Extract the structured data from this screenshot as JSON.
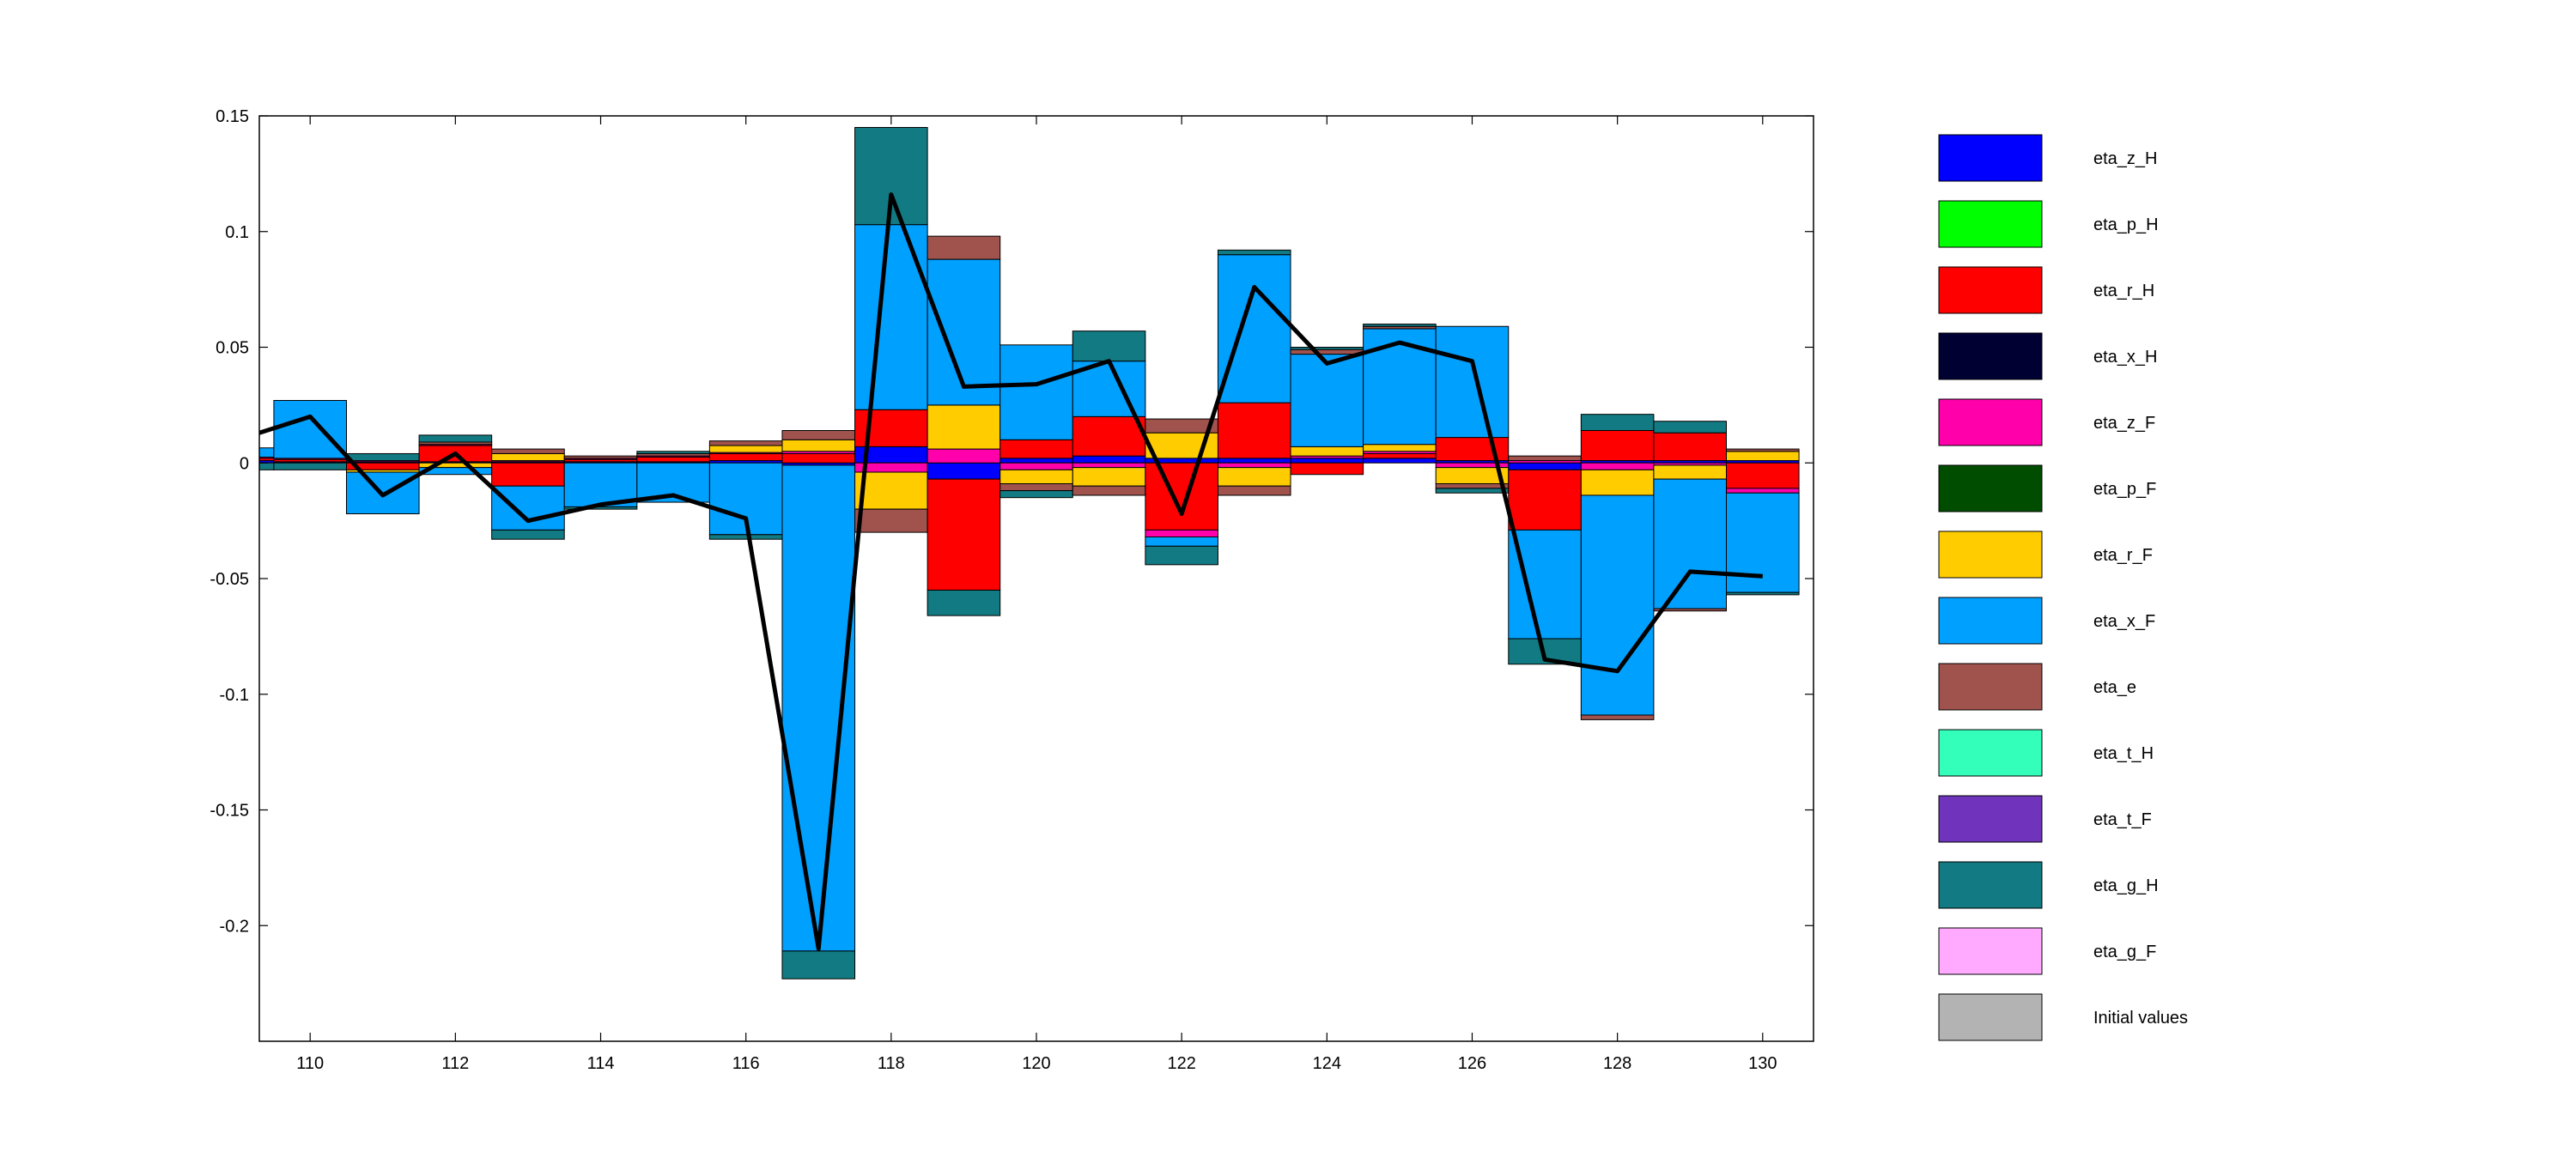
{
  "chart_data": {
    "type": "bar",
    "stacked": true,
    "x": [
      109,
      110,
      111,
      112,
      113,
      114,
      115,
      116,
      117,
      118,
      119,
      120,
      121,
      122,
      123,
      124,
      125,
      126,
      127,
      128,
      129,
      130
    ],
    "xlim": [
      109.3,
      130.7
    ],
    "ylim": [
      -0.25,
      0.15
    ],
    "xticks": [
      "110",
      "112",
      "114",
      "116",
      "118",
      "120",
      "122",
      "124",
      "126",
      "128",
      "130"
    ],
    "yticks": [
      "0.15",
      "0.1",
      "0.05",
      "0",
      "-0.05",
      "-0.1",
      "-0.15",
      "-0.2"
    ],
    "grid": false,
    "legend_position": "right-outside",
    "series": [
      {
        "name": "eta_z_H",
        "color": "#0000FF",
        "values": [
          0.001,
          0.0005,
          0.0005,
          0.0005,
          0.0005,
          0.0005,
          0.0005,
          0.001,
          -0.001,
          0.007,
          -0.007,
          0.002,
          0.003,
          0.002,
          0.002,
          0.002,
          0.002,
          0.001,
          -0.003,
          0.001,
          0.001,
          0.001
        ]
      },
      {
        "name": "eta_p_H",
        "color": "#00FF00",
        "values": [
          0,
          0,
          0,
          0,
          0,
          0,
          0,
          0,
          0,
          0,
          0,
          0,
          0,
          0,
          0,
          0,
          0,
          0,
          0,
          0,
          0,
          0
        ]
      },
      {
        "name": "eta_r_H",
        "color": "#FF0000",
        "values": [
          0.001,
          0.001,
          -0.003,
          0.007,
          -0.01,
          0.001,
          0.002,
          0.003,
          0.004,
          0.016,
          -0.048,
          0.008,
          0.017,
          -0.029,
          0.024,
          -0.005,
          0.002,
          0.01,
          -0.026,
          0.013,
          0.012,
          -0.011
        ]
      },
      {
        "name": "eta_x_H",
        "color": "#000033",
        "values": [
          0,
          0,
          0,
          0,
          0,
          0,
          0,
          0,
          0,
          0,
          0,
          0,
          0,
          0,
          0,
          0,
          0,
          0,
          0,
          0,
          0,
          0
        ]
      },
      {
        "name": "eta_z_F",
        "color": "#FF00AA",
        "values": [
          0.0005,
          0.0005,
          0.0005,
          0.0005,
          0.0005,
          0.0005,
          0.0005,
          0.0005,
          0.001,
          -0.004,
          0.006,
          -0.003,
          -0.002,
          -0.003,
          -0.002,
          0.001,
          0.001,
          -0.002,
          0.001,
          -0.003,
          -0.001,
          -0.002
        ]
      },
      {
        "name": "eta_p_F",
        "color": "#004D00",
        "values": [
          0,
          0,
          0,
          0,
          0,
          0,
          0,
          0,
          0,
          0,
          0,
          0,
          0,
          0,
          0,
          0,
          0,
          0,
          0,
          0,
          0,
          0
        ]
      },
      {
        "name": "eta_r_F",
        "color": "#FFCC00",
        "values": [
          0,
          0,
          -0.001,
          -0.002,
          0.003,
          0,
          0,
          0.003,
          0.005,
          -0.016,
          0.019,
          -0.006,
          -0.008,
          0.011,
          -0.008,
          0.004,
          0.003,
          -0.007,
          0,
          -0.011,
          -0.006,
          0.004
        ]
      },
      {
        "name": "eta_x_F",
        "color": "#00A0FF",
        "values": [
          0.004,
          0.025,
          -0.018,
          -0.003,
          -0.019,
          -0.019,
          -0.017,
          -0.031,
          -0.21,
          0.08,
          0.063,
          0.041,
          0.024,
          -0.004,
          0.064,
          0.04,
          0.05,
          0.048,
          -0.047,
          -0.095,
          -0.056,
          -0.043
        ]
      },
      {
        "name": "eta_e",
        "color": "#A0524D",
        "values": [
          0,
          0,
          0,
          0.001,
          0.002,
          0.001,
          0.001,
          0.002,
          0.004,
          -0.01,
          0.01,
          -0.003,
          -0.004,
          0.006,
          -0.004,
          0.002,
          0.001,
          -0.002,
          0.002,
          -0.002,
          -0.001,
          0.001
        ]
      },
      {
        "name": "eta_t_H",
        "color": "#33FFBB",
        "values": [
          0,
          0,
          0,
          0,
          0,
          0,
          0,
          0,
          0,
          0,
          0,
          0,
          0,
          0,
          0,
          0,
          0,
          0,
          0,
          0,
          0,
          0
        ]
      },
      {
        "name": "eta_t_F",
        "color": "#7033BB",
        "values": [
          0,
          0,
          0,
          0,
          0,
          0,
          0,
          0,
          0,
          0,
          0,
          0,
          0,
          0,
          0,
          0,
          0,
          0,
          0,
          0,
          0,
          0
        ]
      },
      {
        "name": "eta_g_H",
        "color": "#127A82",
        "values": [
          -0.003,
          -0.003,
          0.003,
          0.003,
          -0.004,
          -0.001,
          0.001,
          -0.002,
          -0.012,
          0.042,
          -0.011,
          -0.003,
          0.013,
          -0.008,
          0.002,
          0.001,
          0.001,
          -0.002,
          -0.011,
          0.007,
          0.005,
          -0.001
        ]
      },
      {
        "name": "eta_g_F",
        "color": "#FFAAFF",
        "values": [
          0,
          0,
          0,
          0,
          0,
          0,
          0,
          0,
          0,
          0,
          0,
          0,
          0,
          0,
          0,
          0,
          0,
          0,
          0,
          0,
          0,
          0
        ]
      },
      {
        "name": "Initial values",
        "color": "#B3B3B3",
        "values": [
          0,
          0,
          0,
          0,
          0,
          0,
          0,
          0,
          0,
          0,
          0,
          0,
          0,
          0,
          0,
          0,
          0,
          0,
          0,
          0,
          0,
          0
        ]
      }
    ],
    "line": {
      "color": "#000000",
      "x": [
        109,
        110,
        111,
        112,
        113,
        114,
        115,
        116,
        117,
        118,
        119,
        120,
        121,
        122,
        123,
        124,
        125,
        126,
        127,
        128,
        129,
        130
      ],
      "values": [
        0.01,
        0.02,
        -0.014,
        0.004,
        -0.025,
        -0.018,
        -0.014,
        -0.024,
        -0.21,
        0.116,
        0.033,
        0.034,
        0.044,
        -0.022,
        0.076,
        0.043,
        0.052,
        0.044,
        -0.085,
        -0.09,
        -0.047,
        -0.049
      ]
    }
  }
}
